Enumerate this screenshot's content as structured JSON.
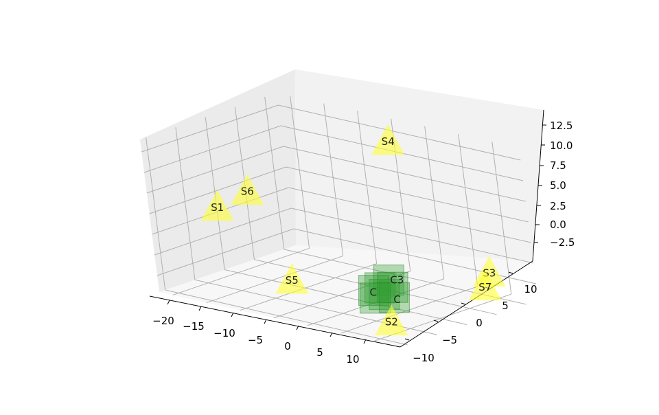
{
  "chart_data": {
    "type": "scatter3d",
    "title": "",
    "xlabel": "",
    "ylabel": "",
    "zlabel": "",
    "xlim": [
      -22,
      14
    ],
    "ylim": [
      -11,
      12
    ],
    "zlim": [
      -4.5,
      14
    ],
    "x_ticks": [
      "−20",
      "−15",
      "−10",
      "−5",
      "0",
      "5",
      "10"
    ],
    "y_ticks": [
      "−10",
      "−5",
      "0",
      "5",
      "10"
    ],
    "z_ticks": [
      "−2.5",
      "0.0",
      "2.5",
      "5.0",
      "7.5",
      "10.0",
      "12.5"
    ],
    "grid": true,
    "legend": "none",
    "colors": {
      "stations": "#ffff33",
      "clusters": "#2e9e2e",
      "pane_left": "#ebebeb",
      "pane_back": "#f2f2f2",
      "pane_floor": "#f7f7f7",
      "grid": "#b0b0b0"
    },
    "series": [
      {
        "marker": "triangle",
        "points": [
          {
            "label": "S1",
            "x": -20,
            "y": -2,
            "z": 4
          },
          {
            "label": "S2",
            "x": 12,
            "y": -10,
            "z": -2
          },
          {
            "label": "S3",
            "x": 8,
            "y": 11,
            "z": -2
          },
          {
            "label": "S4",
            "x": -4,
            "y": 10,
            "z": 12
          },
          {
            "label": "S5",
            "x": -10,
            "y": -2,
            "z": -3
          },
          {
            "label": "S6",
            "x": -17,
            "y": 0,
            "z": 6
          },
          {
            "label": "S7",
            "x": 9,
            "y": 9,
            "z": -3
          }
        ]
      },
      {
        "marker": "square",
        "points": [
          {
            "label": "C3",
            "x": 1,
            "y": 2.0,
            "z": -2.0
          },
          {
            "label": "",
            "x": 0,
            "y": 1.5,
            "z": -3.0
          },
          {
            "label": "",
            "x": 1,
            "y": 1.0,
            "z": -3.5
          },
          {
            "label": "",
            "x": -1,
            "y": 1.5,
            "z": -3.5
          },
          {
            "label": "",
            "x": 2,
            "y": 1.5,
            "z": -3.8
          },
          {
            "label": "",
            "x": 0,
            "y": 0.5,
            "z": -4.0
          },
          {
            "label": "",
            "x": 1,
            "y": 2.5,
            "z": -3.0
          }
        ]
      }
    ],
    "overlap_labels": [
      {
        "label": "C",
        "ref": 3
      },
      {
        "label": "C",
        "ref": 4
      }
    ]
  }
}
